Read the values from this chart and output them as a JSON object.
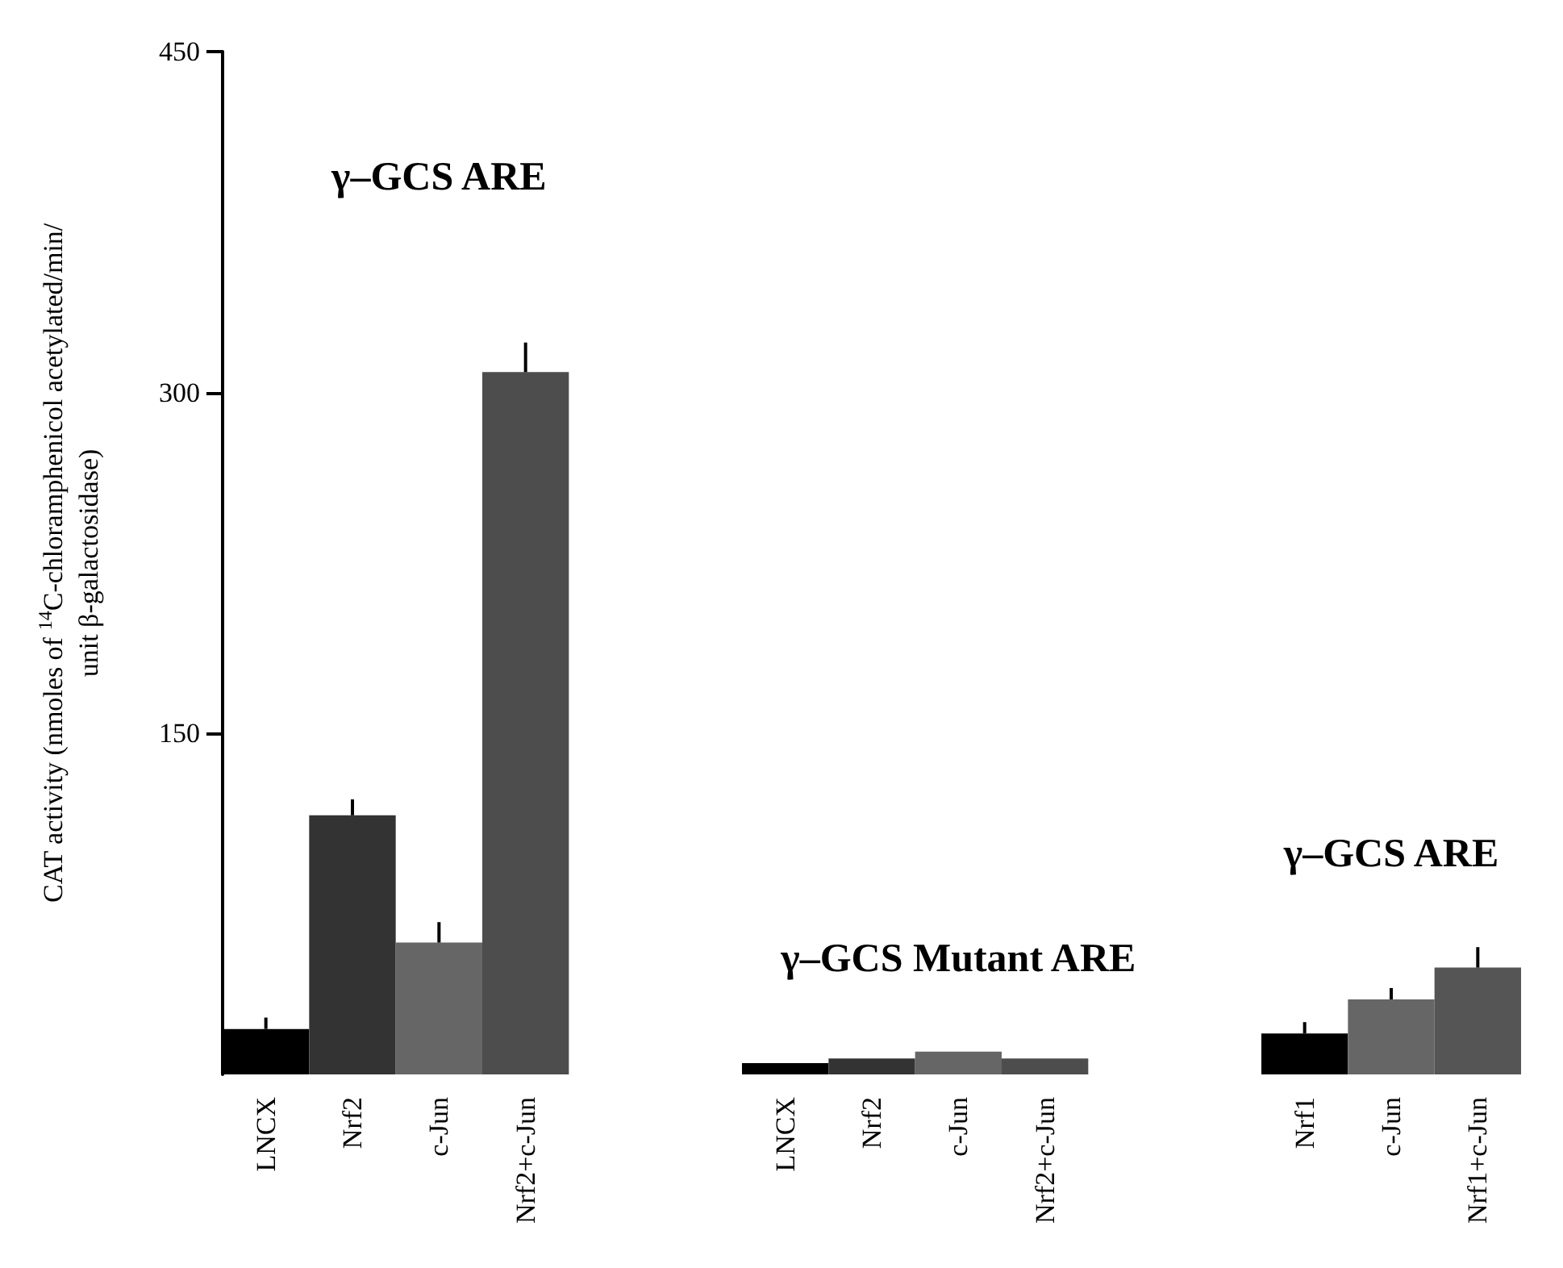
{
  "chart_data": {
    "type": "bar",
    "ylabel": "CAT activity (nmoles of $^{14}$C-chloramphenicol acetylated/min/unit β-galactosidase)",
    "categories": [
      "LNCX",
      "Nrf2",
      "c-Jun",
      "Nrf2+c-Jun",
      null,
      null,
      "LNCX",
      "Nrf2",
      "c-Jun",
      "Nrf2+c-Jun",
      null,
      null,
      "Nrf1",
      "c-Jun",
      "Nrf1+c-Jun"
    ],
    "values": [
      20,
      114,
      58,
      309,
      null,
      null,
      5,
      7,
      10,
      7,
      null,
      null,
      18,
      33,
      47
    ],
    "errors": [
      [
        20,
        25
      ],
      [
        114,
        121
      ],
      [
        58,
        67
      ],
      [
        309,
        322
      ],
      null,
      null,
      null,
      null,
      null,
      null,
      null,
      null,
      [
        18,
        23
      ],
      [
        33,
        38
      ],
      [
        47,
        56
      ]
    ],
    "colors": [
      "#000000",
      "#333333",
      "#666666",
      "#4d4d4d",
      null,
      null,
      "#000000",
      "#333333",
      "#666666",
      "#4d4d4d",
      null,
      null,
      "#000000",
      "#666666",
      "#555555"
    ],
    "annotations": [
      "γ–GCS ARE",
      "γ–GCS Mutant ARE",
      "γ–GCS ARE"
    ],
    "ylim": [
      0,
      450
    ],
    "yticks": [
      150,
      300,
      450
    ],
    "grid": false
  }
}
